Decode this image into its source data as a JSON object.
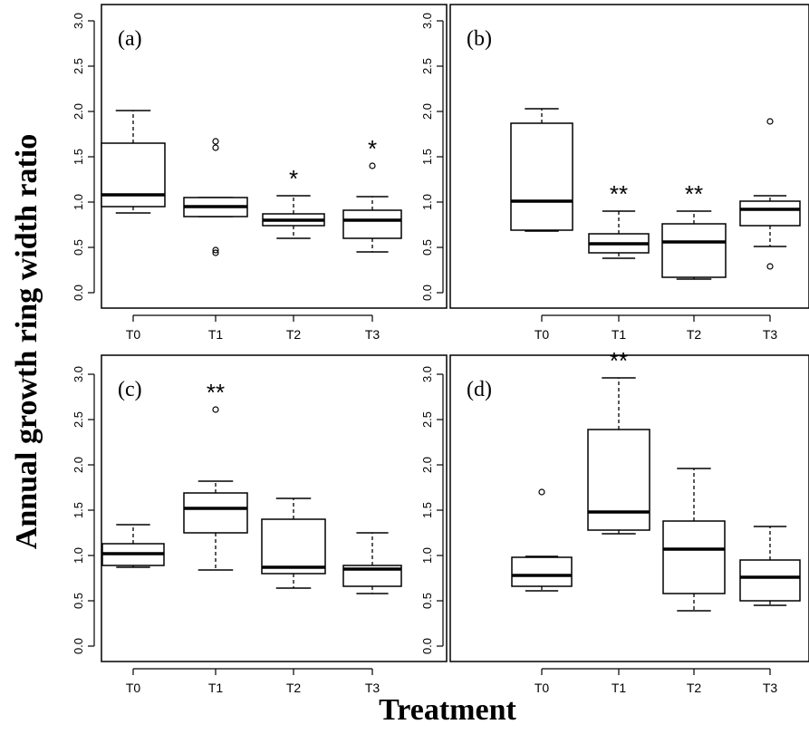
{
  "figure": {
    "ylabel": "Annual growth ring width ratio",
    "xlabel": "Treatment"
  },
  "chart_data": [
    {
      "type": "box",
      "panel_label": "(a)",
      "categories": [
        "T0",
        "T1",
        "T2",
        "T3"
      ],
      "ylim": [
        0,
        3.0
      ],
      "yticks": [
        "0.0",
        "0.5",
        "1.0",
        "1.5",
        "2.0",
        "2.5",
        "3.0"
      ],
      "boxes": [
        {
          "category": "T0",
          "whisker_low": 0.88,
          "q1": 0.95,
          "median": 1.08,
          "q3": 1.65,
          "whisker_high": 2.01,
          "outliers": [],
          "significance": ""
        },
        {
          "category": "T1",
          "whisker_low": 0.84,
          "q1": 0.84,
          "median": 0.95,
          "q3": 1.05,
          "whisker_high": 1.05,
          "outliers": [
            1.6,
            1.67,
            0.44,
            0.47
          ],
          "significance": ""
        },
        {
          "category": "T2",
          "whisker_low": 0.6,
          "q1": 0.74,
          "median": 0.8,
          "q3": 0.87,
          "whisker_high": 1.07,
          "outliers": [],
          "significance": "*"
        },
        {
          "category": "T3",
          "whisker_low": 0.45,
          "q1": 0.6,
          "median": 0.8,
          "q3": 0.91,
          "whisker_high": 1.06,
          "outliers": [
            1.4
          ],
          "significance": "*"
        }
      ]
    },
    {
      "type": "box",
      "panel_label": "(b)",
      "categories": [
        "T0",
        "T1",
        "T2",
        "T3"
      ],
      "ylim": [
        0,
        3.0
      ],
      "yticks": [
        "0.0",
        "0.5",
        "1.0",
        "1.5",
        "2.0",
        "2.5",
        "3.0"
      ],
      "boxes": [
        {
          "category": "T0",
          "whisker_low": 0.68,
          "q1": 0.69,
          "median": 1.01,
          "q3": 1.87,
          "whisker_high": 2.03,
          "outliers": [],
          "significance": ""
        },
        {
          "category": "T1",
          "whisker_low": 0.38,
          "q1": 0.44,
          "median": 0.54,
          "q3": 0.65,
          "whisker_high": 0.9,
          "outliers": [],
          "significance": "**"
        },
        {
          "category": "T2",
          "whisker_low": 0.15,
          "q1": 0.17,
          "median": 0.56,
          "q3": 0.76,
          "whisker_high": 0.9,
          "outliers": [],
          "significance": "**"
        },
        {
          "category": "T3",
          "whisker_low": 0.51,
          "q1": 0.74,
          "median": 0.92,
          "q3": 1.01,
          "whisker_high": 1.07,
          "outliers": [
            1.89,
            0.29
          ],
          "significance": ""
        }
      ]
    },
    {
      "type": "box",
      "panel_label": "(c)",
      "categories": [
        "T0",
        "T1",
        "T2",
        "T3"
      ],
      "ylim": [
        0,
        3.0
      ],
      "yticks": [
        "0.0",
        "0.5",
        "1.0",
        "1.5",
        "2.0",
        "2.5",
        "3.0"
      ],
      "boxes": [
        {
          "category": "T0",
          "whisker_low": 0.87,
          "q1": 0.89,
          "median": 1.02,
          "q3": 1.13,
          "whisker_high": 1.34,
          "outliers": [],
          "significance": ""
        },
        {
          "category": "T1",
          "whisker_low": 0.84,
          "q1": 1.25,
          "median": 1.52,
          "q3": 1.69,
          "whisker_high": 1.82,
          "outliers": [
            2.61
          ],
          "significance": "**"
        },
        {
          "category": "T2",
          "whisker_low": 0.64,
          "q1": 0.8,
          "median": 0.87,
          "q3": 1.4,
          "whisker_high": 1.63,
          "outliers": [],
          "significance": ""
        },
        {
          "category": "T3",
          "whisker_low": 0.58,
          "q1": 0.66,
          "median": 0.85,
          "q3": 0.89,
          "whisker_high": 1.25,
          "outliers": [],
          "significance": ""
        }
      ]
    },
    {
      "type": "box",
      "panel_label": "(d)",
      "categories": [
        "T0",
        "T1",
        "T2",
        "T3"
      ],
      "ylim": [
        0,
        3.0
      ],
      "yticks": [
        "0.0",
        "0.5",
        "1.0",
        "1.5",
        "2.0",
        "2.5",
        "3.0"
      ],
      "boxes": [
        {
          "category": "T0",
          "whisker_low": 0.61,
          "q1": 0.66,
          "median": 0.78,
          "q3": 0.98,
          "whisker_high": 0.99,
          "outliers": [
            1.7
          ],
          "significance": ""
        },
        {
          "category": "T1",
          "whisker_low": 1.24,
          "q1": 1.28,
          "median": 1.48,
          "q3": 2.39,
          "whisker_high": 2.96,
          "outliers": [],
          "significance": "**"
        },
        {
          "category": "T2",
          "whisker_low": 0.39,
          "q1": 0.58,
          "median": 1.07,
          "q3": 1.38,
          "whisker_high": 1.96,
          "outliers": [],
          "significance": ""
        },
        {
          "category": "T3",
          "whisker_low": 0.45,
          "q1": 0.5,
          "median": 0.76,
          "q3": 0.95,
          "whisker_high": 1.32,
          "outliers": [],
          "significance": ""
        }
      ]
    }
  ]
}
